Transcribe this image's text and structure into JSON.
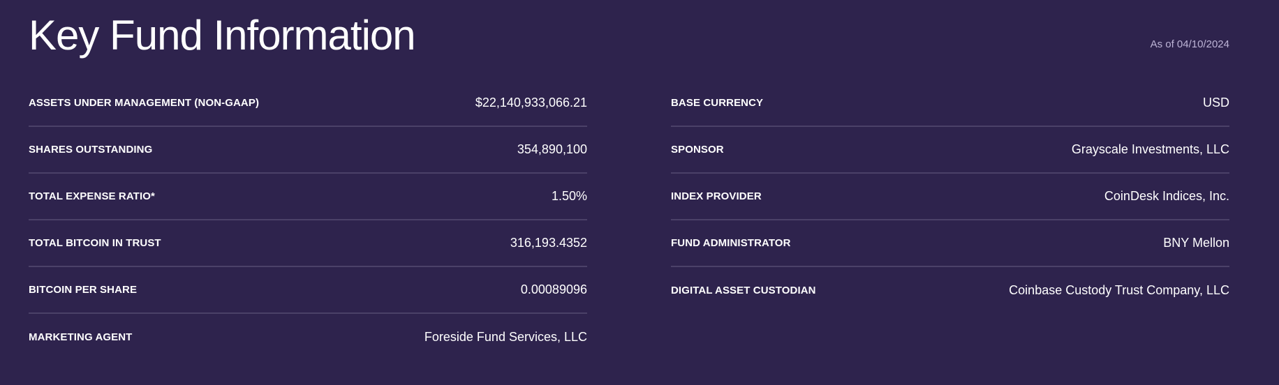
{
  "header": {
    "title": "Key Fund Information",
    "as_of": "As of 04/10/2024"
  },
  "left_column": [
    {
      "label": "ASSETS UNDER MANAGEMENT (NON-GAAP)",
      "value": "$22,140,933,066.21"
    },
    {
      "label": "SHARES OUTSTANDING",
      "value": "354,890,100"
    },
    {
      "label": "TOTAL EXPENSE RATIO*",
      "value": "1.50%"
    },
    {
      "label": "TOTAL BITCOIN IN TRUST",
      "value": "316,193.4352"
    },
    {
      "label": "BITCOIN PER SHARE",
      "value": "0.00089096"
    },
    {
      "label": "MARKETING AGENT",
      "value": "Foreside Fund Services, LLC"
    }
  ],
  "right_column": [
    {
      "label": "BASE CURRENCY",
      "value": "USD"
    },
    {
      "label": "SPONSOR",
      "value": "Grayscale Investments, LLC"
    },
    {
      "label": "INDEX PROVIDER",
      "value": "CoinDesk Indices, Inc."
    },
    {
      "label": "FUND ADMINISTRATOR",
      "value": "BNY Mellon"
    },
    {
      "label": "DIGITAL ASSET CUSTODIAN",
      "value": "Coinbase Custody Trust Company, LLC"
    }
  ],
  "colors": {
    "background": "#2e234d",
    "divider": "#4b4168",
    "text": "#ffffff",
    "muted_text": "#bdb4d6"
  }
}
